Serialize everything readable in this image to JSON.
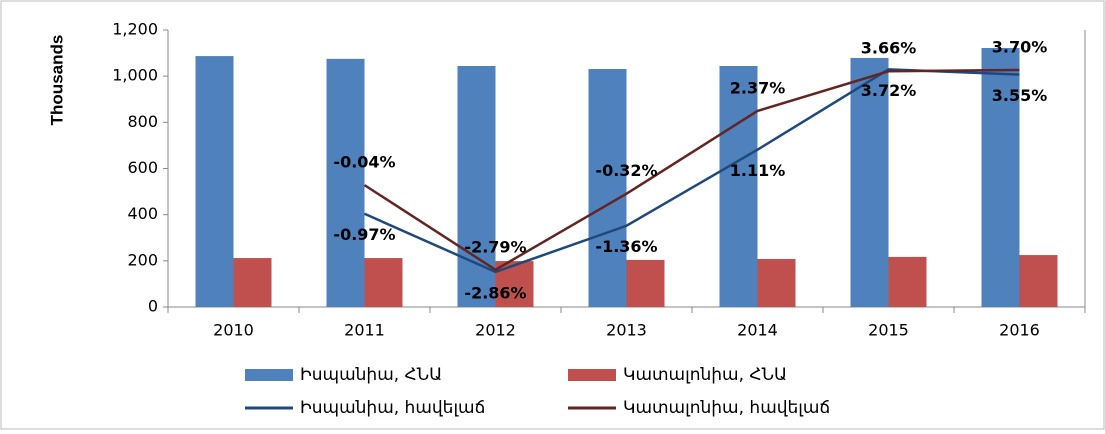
{
  "chart_data": {
    "type": "bar_line",
    "y_axis_label": "Thousands",
    "categories": [
      "2010",
      "2011",
      "2012",
      "2013",
      "2014",
      "2015",
      "2016"
    ],
    "ylim": [
      0,
      1200
    ],
    "yticks": [
      0,
      200,
      400,
      600,
      800,
      {
        "value": 1000,
        "label": "1,000"
      },
      {
        "value": 1200,
        "label": "1,200"
      }
    ],
    "y2lim": [
      -4,
      5
    ],
    "series": [
      {
        "name": "Իսպանիա, ՀՆԱ",
        "type": "bar",
        "color": "#4f81bd",
        "values": [
          1087,
          1075,
          1044,
          1031,
          1044,
          1079,
          1122
        ]
      },
      {
        "name": "Կատալոնիա, ՀՆԱ",
        "type": "bar",
        "color": "#c0504d",
        "values": [
          212,
          212,
          199,
          204,
          208,
          217,
          225
        ]
      },
      {
        "name": "Իսպանիա, հավելաճ",
        "type": "line",
        "axis": "y2",
        "color": "#1f497d",
        "values": [
          null,
          -0.97,
          -2.86,
          -1.36,
          1.11,
          3.72,
          3.55
        ],
        "value_labels": [
          null,
          "-0.97%",
          "-2.86%",
          "-1.36%",
          "1.11%",
          "3.72%",
          "3.55%"
        ]
      },
      {
        "name": "Կատալոնիա, հավելաճ",
        "type": "line",
        "axis": "y2",
        "color": "#632523",
        "values": [
          null,
          -0.04,
          -2.79,
          -0.32,
          2.37,
          3.66,
          3.7
        ],
        "value_labels": [
          null,
          "-0.04%",
          "-2.79%",
          "-0.32%",
          "2.37%",
          "3.66%",
          "3.70%"
        ]
      }
    ]
  }
}
